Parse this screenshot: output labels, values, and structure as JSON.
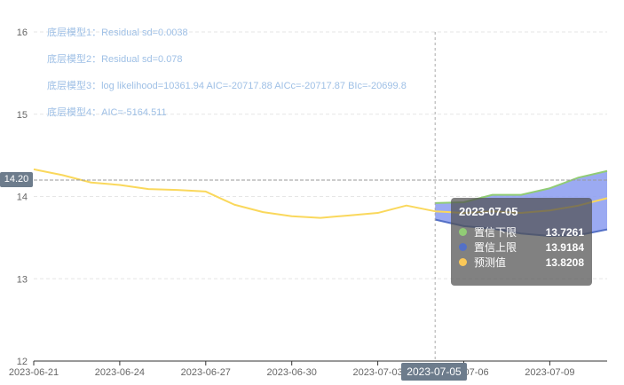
{
  "annotations": [
    "底层模型1：Residual sd=0.0038",
    "底层模型2：Residual sd=0.078",
    "底层模型3：log likelihood=10361.94 AIC=-20717.88 AICc=-20717.87 BIc=-20699.8",
    "底层模型4：AIC=-5164.511"
  ],
  "crosshair": {
    "y_label": "14.20",
    "x_label": "2023-07-05"
  },
  "tooltip": {
    "title": "2023-07-05",
    "rows": [
      {
        "name": "置信下限",
        "value": "13.7261",
        "color": "#91cc75"
      },
      {
        "name": "置信上限",
        "value": "13.9184",
        "color": "#5470c6"
      },
      {
        "name": "预测值",
        "value": "13.8208",
        "color": "#fac858"
      }
    ]
  },
  "colors": {
    "band_fill": "#8a9bf0",
    "lower": "#91cc75",
    "upper": "#5470c6",
    "forecast": "#fad85c",
    "axis": "#333333",
    "grid": "#e6e6e6",
    "crosshair": "#aaaaaa"
  },
  "chart_data": {
    "type": "line",
    "x": [
      "2023-06-21",
      "2023-06-22",
      "2023-06-23",
      "2023-06-24",
      "2023-06-25",
      "2023-06-26",
      "2023-06-27",
      "2023-06-28",
      "2023-06-29",
      "2023-06-30",
      "2023-07-01",
      "2023-07-02",
      "2023-07-03",
      "2023-07-04",
      "2023-07-05",
      "2023-07-06",
      "2023-07-07",
      "2023-07-08",
      "2023-07-09",
      "2023-07-10",
      "2023-07-11"
    ],
    "x_ticks": [
      "2023-06-21",
      "2023-06-24",
      "2023-06-27",
      "2023-06-30",
      "2023-07-03",
      "2023-07-06",
      "2023-07-09"
    ],
    "ylim": [
      12,
      16
    ],
    "yticks": [
      12,
      13,
      14,
      15,
      16
    ],
    "grid": true,
    "series": [
      {
        "key": "lower",
        "values": [
          null,
          null,
          null,
          null,
          null,
          null,
          null,
          null,
          null,
          null,
          null,
          null,
          null,
          null,
          13.72,
          13.64,
          13.61,
          13.55,
          13.52,
          13.53,
          13.6
        ]
      },
      {
        "key": "upper",
        "values": [
          null,
          null,
          null,
          null,
          null,
          null,
          null,
          null,
          null,
          null,
          null,
          null,
          null,
          null,
          13.92,
          13.93,
          14.02,
          14.02,
          14.1,
          14.23,
          14.31
        ]
      },
      {
        "key": "forecast",
        "values": [
          14.33,
          14.26,
          14.17,
          14.14,
          14.09,
          14.08,
          14.06,
          13.9,
          13.81,
          13.76,
          13.74,
          13.77,
          13.8,
          13.89,
          13.82,
          13.8,
          13.82,
          13.8,
          13.83,
          13.89,
          13.98
        ]
      }
    ]
  }
}
